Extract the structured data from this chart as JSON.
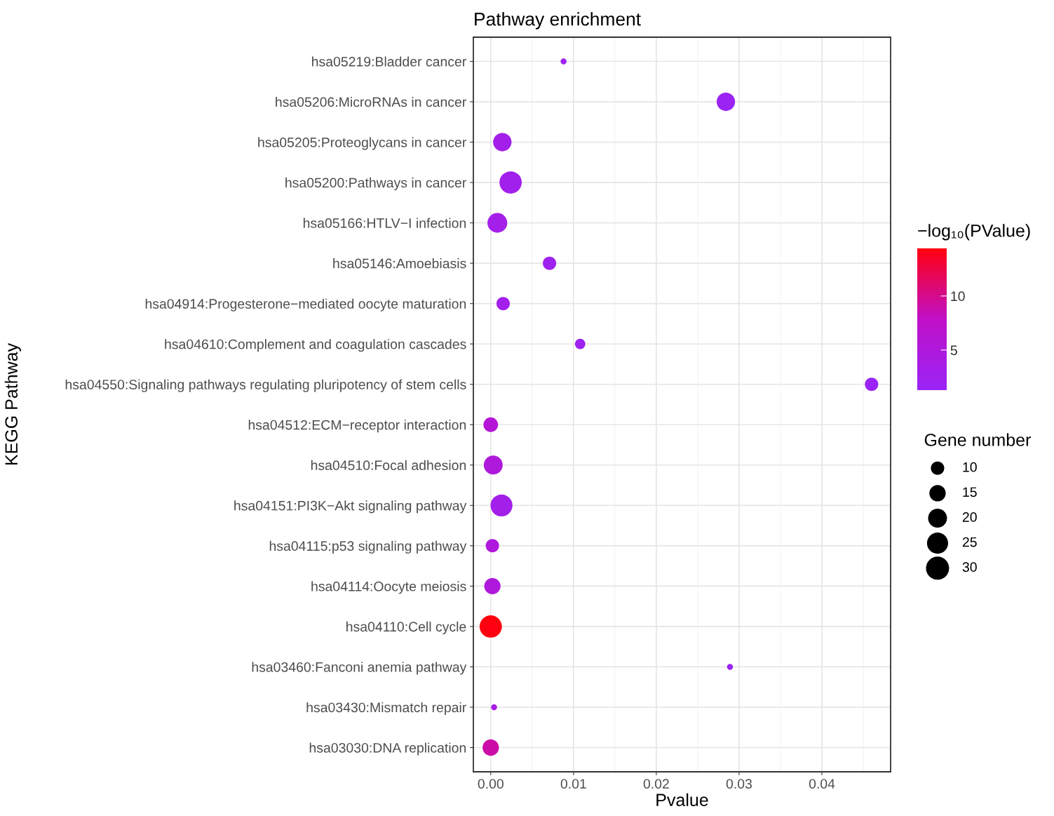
{
  "chart_data": {
    "type": "bubble",
    "title": "Pathway enrichment",
    "xlabel": "Pvalue",
    "ylabel": "KEGG Pathway",
    "clabel": "−log₁₀(PValue)",
    "legend_title": "Gene number",
    "categories": [
      "hsa05219:Bladder cancer",
      "hsa05206:MicroRNAs in cancer",
      "hsa05205:Proteoglycans in cancer",
      "hsa05200:Pathways in cancer",
      "hsa05166:HTLV−I infection",
      "hsa05146:Amoebiasis",
      "hsa04914:Progesterone−mediated oocyte maturation",
      "hsa04610:Complement and coagulation cascades",
      "hsa04550:Signaling pathways regulating pluripotency of stem cells",
      "hsa04512:ECM−receptor interaction",
      "hsa04510:Focal adhesion",
      "hsa04151:PI3K−Akt signaling pathway",
      "hsa04115:p53 signaling pathway",
      "hsa04114:Oocyte meiosis",
      "hsa04110:Cell cycle",
      "hsa03460:Fanconi anemia pathway",
      "hsa03430:Mismatch repair",
      "hsa03030:DNA replication"
    ],
    "orientation": "horizontal",
    "values": [
      0.0088,
      0.0284,
      0.0014,
      0.0024,
      0.0008,
      0.0071,
      0.0015,
      0.0108,
      0.046,
      0.0,
      0.0003,
      0.0013,
      0.0002,
      0.0002,
      0.0,
      0.0289,
      0.0004,
      0.0
    ],
    "sizes": [
      2,
      19,
      19,
      28,
      22,
      10,
      10,
      6,
      10,
      12,
      20,
      27,
      10,
      15,
      28,
      2,
      2,
      15
    ],
    "size_legend": [
      10,
      15,
      20,
      25,
      30
    ],
    "cvalues": [
      2.06,
      1.55,
      2.85,
      2.6,
      3.1,
      2.15,
      2.8,
      1.97,
      1.34,
      6,
      5,
      2.9,
      5,
      5,
      14.4,
      1.54,
      3.4,
      9
    ],
    "clim": [
      1.3,
      14.4
    ],
    "cticks": [
      5,
      10
    ],
    "xlim": [
      -0.0021,
      0.0483
    ],
    "xticks": [
      {
        "value": 0,
        "label": "0.00"
      },
      {
        "value": 0.01,
        "label": "0.01"
      },
      {
        "value": 0.02,
        "label": "0.02"
      },
      {
        "value": 0.03,
        "label": "0.03"
      },
      {
        "value": 0.04,
        "label": "0.04"
      }
    ],
    "grid": true
  }
}
